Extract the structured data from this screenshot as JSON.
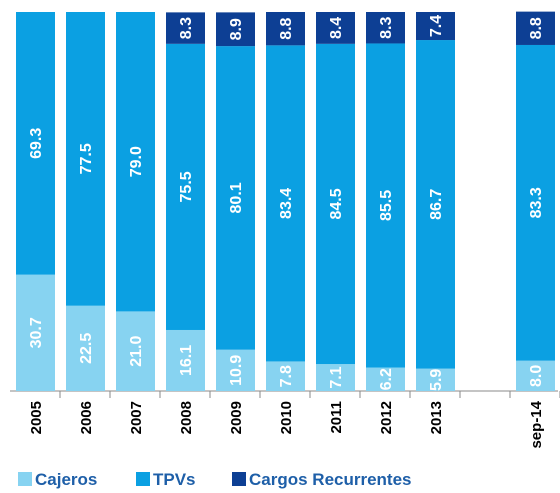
{
  "chart_data": {
    "type": "stacked-bar",
    "categories": [
      "2005",
      "2006",
      "2007",
      "2008",
      "2009",
      "2010",
      "2011",
      "2012",
      "2013",
      null,
      "sep-14"
    ],
    "ylim": [
      0,
      100
    ],
    "legend": "bottom",
    "series": [
      {
        "name": "Cajeros",
        "color": "#87d3f1",
        "values": [
          30.7,
          22.5,
          21.0,
          16.1,
          10.9,
          7.8,
          7.1,
          6.2,
          5.9,
          null,
          8.0
        ],
        "value_labels": [
          "30.7",
          "22.5",
          "21.0",
          "16.1",
          "10.9",
          "7.8",
          "7.1",
          "6.2",
          "5.9",
          null,
          "8.0"
        ]
      },
      {
        "name": "TPVs",
        "color": "#0ba0e2",
        "values": [
          69.3,
          77.5,
          79.0,
          75.5,
          80.1,
          83.4,
          84.5,
          85.5,
          86.7,
          null,
          83.3
        ],
        "value_labels": [
          "69.3",
          "77.5",
          "79.0",
          "75.5",
          "80.1",
          "83.4",
          "84.5",
          "85.5",
          "86.7",
          null,
          "83.3"
        ]
      },
      {
        "name": "Cargos Recurrentes",
        "color": "#0d3f94",
        "values": [
          null,
          null,
          null,
          8.3,
          8.9,
          8.8,
          8.4,
          8.3,
          7.4,
          null,
          8.8
        ],
        "value_labels": [
          null,
          null,
          null,
          "8.3",
          "8.9",
          "8.8",
          "8.4",
          "8.3",
          "7.4",
          null,
          "8.8"
        ]
      }
    ]
  }
}
